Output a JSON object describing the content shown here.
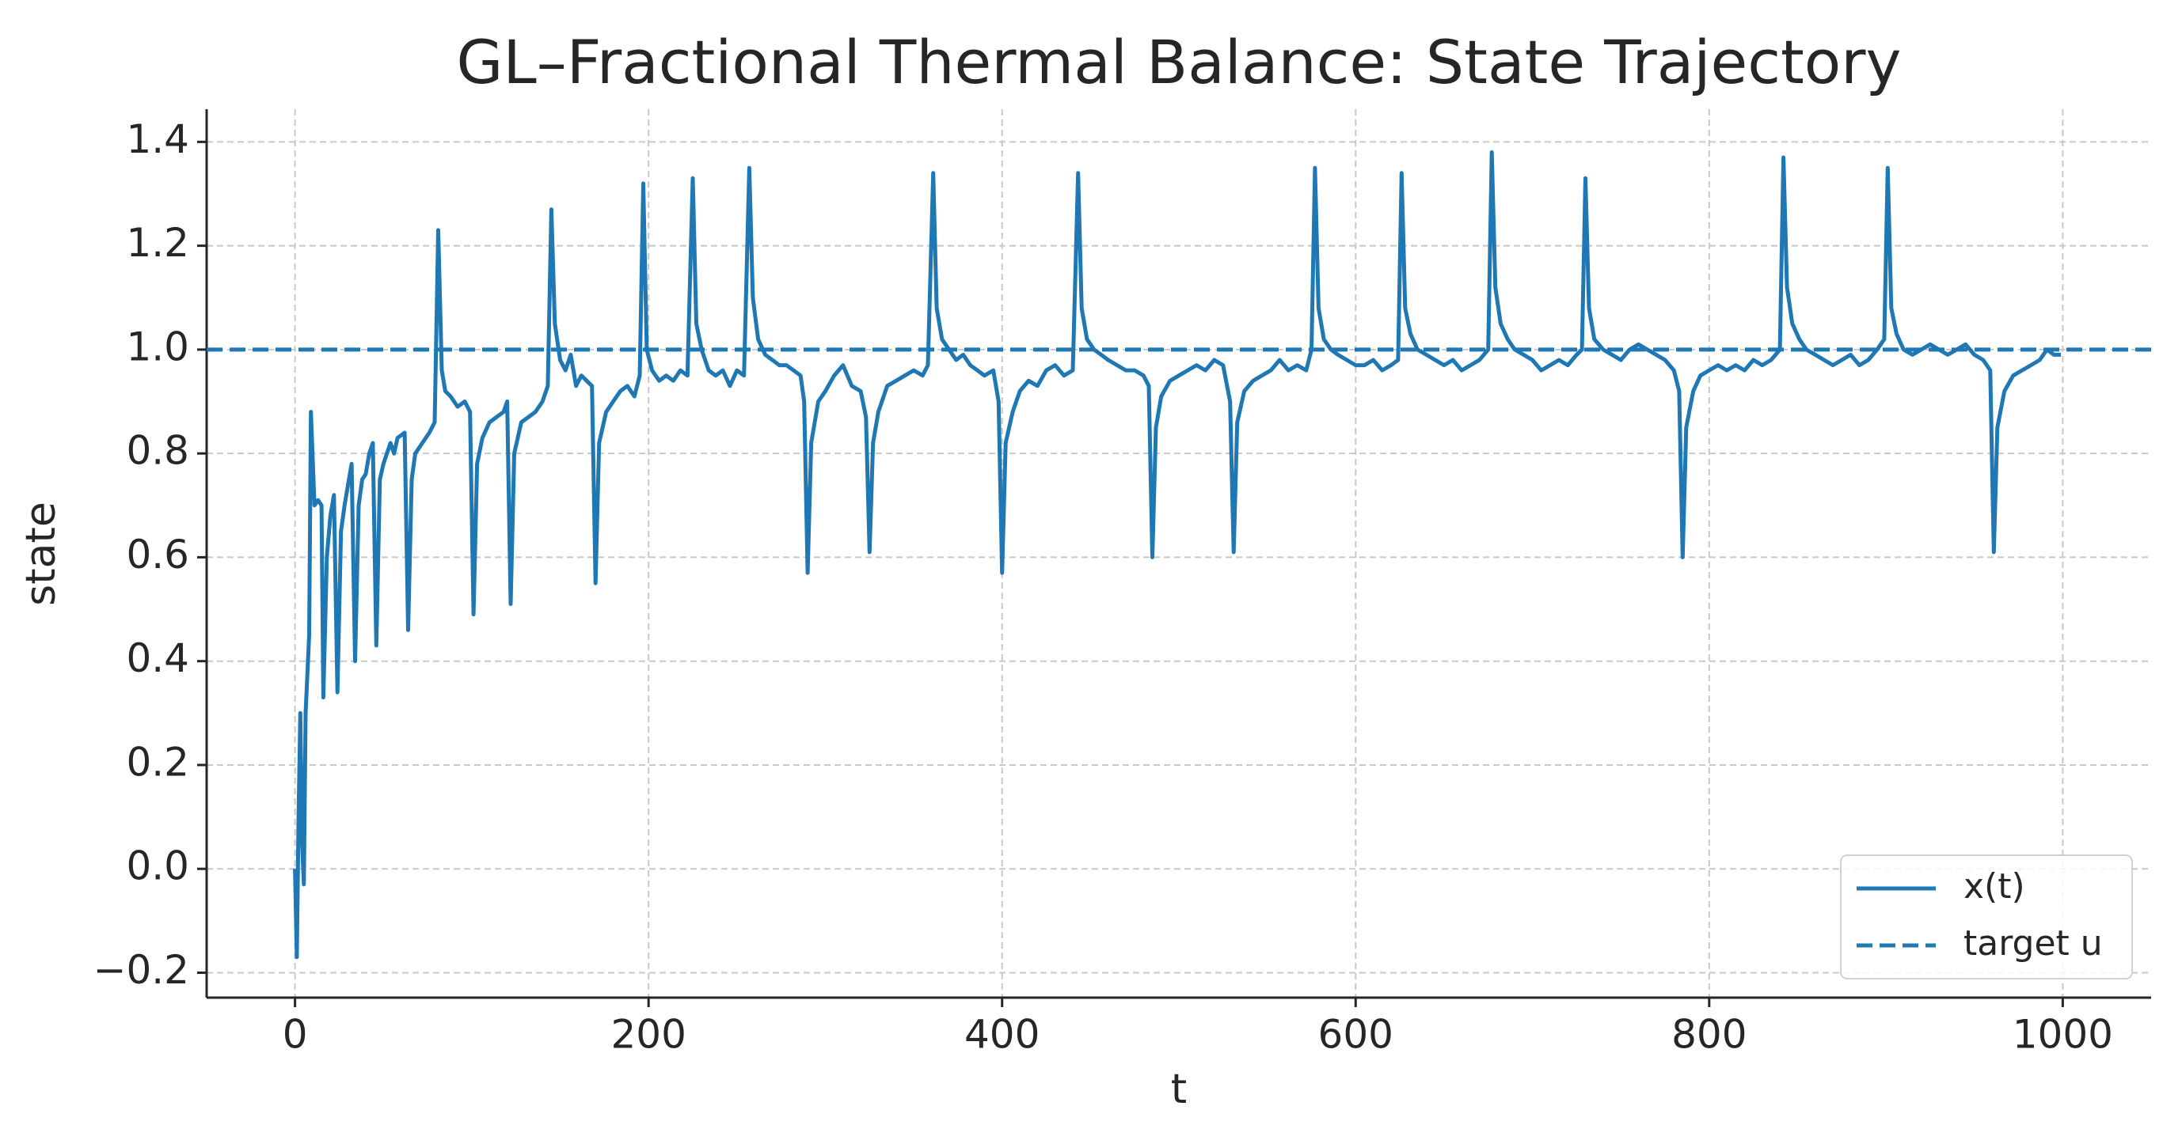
{
  "chart_data": {
    "type": "line",
    "title": "GL–Fractional Thermal Balance: State Trajectory",
    "x_label": "t",
    "y_label": "state",
    "xlim": [
      -50,
      1050
    ],
    "ylim": [
      -0.248,
      1.463
    ],
    "xticks": [
      0,
      200,
      400,
      600,
      800,
      1000
    ],
    "yticks": [
      {
        "value": -0.2,
        "label": "−0.2"
      },
      {
        "value": 0.0,
        "label": "0.0"
      },
      0.2,
      0.4,
      0.6,
      0.8,
      {
        "value": 1.0,
        "label": "1.0"
      },
      1.2,
      1.4
    ],
    "grid": true,
    "legend": "lower right",
    "series": [
      {
        "name": "x(t)",
        "color": "#1f77b4",
        "x": [
          0,
          1,
          2,
          3,
          4,
          5,
          6,
          8,
          9,
          11,
          13,
          15,
          16,
          18,
          20,
          22,
          24,
          26,
          28,
          30,
          32,
          34,
          36,
          38,
          40,
          42,
          44,
          46,
          48,
          50,
          52,
          54,
          56,
          58,
          62,
          64,
          66,
          68,
          72,
          76,
          79,
          81,
          83,
          85,
          88,
          92,
          96,
          99,
          101,
          103,
          106,
          110,
          114,
          118,
          120,
          122,
          124,
          128,
          132,
          136,
          140,
          143,
          145,
          147,
          150,
          153,
          156,
          159,
          162,
          165,
          168,
          170,
          172,
          176,
          180,
          184,
          188,
          192,
          195,
          197,
          199,
          202,
          206,
          210,
          214,
          218,
          222,
          225,
          227,
          230,
          234,
          238,
          242,
          246,
          250,
          254,
          257,
          259,
          262,
          266,
          270,
          274,
          278,
          282,
          286,
          288,
          290,
          292,
          296,
          300,
          305,
          310,
          315,
          320,
          323,
          325,
          327,
          330,
          335,
          340,
          345,
          350,
          355,
          358,
          361,
          363,
          366,
          370,
          374,
          378,
          382,
          386,
          390,
          395,
          398,
          400,
          402,
          406,
          410,
          415,
          420,
          425,
          430,
          435,
          440,
          443,
          445,
          448,
          452,
          456,
          460,
          465,
          470,
          475,
          480,
          483,
          485,
          487,
          490,
          495,
          500,
          505,
          510,
          515,
          520,
          525,
          529,
          531,
          533,
          537,
          542,
          547,
          552,
          557,
          562,
          567,
          572,
          575,
          577,
          579,
          582,
          586,
          590,
          595,
          600,
          605,
          610,
          615,
          620,
          624,
          626,
          628,
          631,
          635,
          640,
          645,
          650,
          655,
          660,
          665,
          670,
          675,
          677,
          679,
          682,
          686,
          690,
          695,
          700,
          705,
          710,
          715,
          720,
          725,
          728,
          730,
          732,
          735,
          740,
          745,
          750,
          755,
          760,
          765,
          770,
          775,
          780,
          783,
          785,
          787,
          791,
          795,
          800,
          805,
          810,
          815,
          820,
          825,
          830,
          835,
          840,
          842,
          844,
          847,
          851,
          855,
          860,
          865,
          870,
          875,
          880,
          885,
          890,
          895,
          899,
          901,
          903,
          906,
          910,
          915,
          920,
          925,
          930,
          935,
          940,
          945,
          950,
          955,
          959,
          961,
          963,
          967,
          972,
          977,
          982,
          987,
          991,
          995,
          999
        ],
        "values": [
          0,
          -0.17,
          0.1,
          0.3,
          0.05,
          -0.03,
          0.3,
          0.45,
          0.88,
          0.7,
          0.71,
          0.7,
          0.33,
          0.6,
          0.68,
          0.72,
          0.34,
          0.65,
          0.7,
          0.74,
          0.78,
          0.4,
          0.7,
          0.75,
          0.76,
          0.8,
          0.82,
          0.43,
          0.75,
          0.78,
          0.8,
          0.82,
          0.8,
          0.83,
          0.84,
          0.46,
          0.75,
          0.8,
          0.82,
          0.84,
          0.86,
          1.23,
          0.96,
          0.92,
          0.91,
          0.89,
          0.9,
          0.88,
          0.49,
          0.78,
          0.83,
          0.86,
          0.87,
          0.88,
          0.9,
          0.51,
          0.8,
          0.86,
          0.87,
          0.88,
          0.9,
          0.93,
          1.27,
          1.05,
          0.98,
          0.96,
          0.99,
          0.93,
          0.95,
          0.94,
          0.93,
          0.55,
          0.82,
          0.88,
          0.9,
          0.92,
          0.93,
          0.91,
          0.95,
          1.32,
          1.0,
          0.96,
          0.94,
          0.95,
          0.94,
          0.96,
          0.95,
          1.33,
          1.05,
          1.0,
          0.96,
          0.95,
          0.96,
          0.93,
          0.96,
          0.95,
          1.35,
          1.1,
          1.02,
          0.99,
          0.98,
          0.97,
          0.97,
          0.96,
          0.95,
          0.9,
          0.57,
          0.82,
          0.9,
          0.92,
          0.95,
          0.97,
          0.93,
          0.92,
          0.87,
          0.61,
          0.82,
          0.88,
          0.93,
          0.94,
          0.95,
          0.96,
          0.95,
          0.97,
          1.34,
          1.08,
          1.02,
          1.0,
          0.98,
          0.99,
          0.97,
          0.96,
          0.95,
          0.96,
          0.9,
          0.57,
          0.82,
          0.88,
          0.92,
          0.94,
          0.93,
          0.96,
          0.97,
          0.95,
          0.96,
          1.34,
          1.08,
          1.02,
          1.0,
          0.99,
          0.98,
          0.97,
          0.96,
          0.96,
          0.95,
          0.93,
          0.6,
          0.85,
          0.91,
          0.94,
          0.95,
          0.96,
          0.97,
          0.96,
          0.98,
          0.97,
          0.9,
          0.61,
          0.86,
          0.92,
          0.94,
          0.95,
          0.96,
          0.98,
          0.96,
          0.97,
          0.96,
          1.0,
          1.35,
          1.08,
          1.02,
          1.0,
          0.99,
          0.98,
          0.97,
          0.97,
          0.98,
          0.96,
          0.97,
          0.98,
          1.34,
          1.08,
          1.03,
          1.0,
          0.99,
          0.98,
          0.97,
          0.98,
          0.96,
          0.97,
          0.98,
          1.0,
          1.38,
          1.12,
          1.05,
          1.02,
          1.0,
          0.99,
          0.98,
          0.96,
          0.97,
          0.98,
          0.97,
          0.99,
          1.0,
          1.33,
          1.08,
          1.02,
          1.0,
          0.99,
          0.98,
          1.0,
          1.01,
          1.0,
          0.99,
          0.98,
          0.96,
          0.92,
          0.6,
          0.85,
          0.92,
          0.95,
          0.96,
          0.97,
          0.96,
          0.97,
          0.96,
          0.98,
          0.97,
          0.98,
          1.0,
          1.37,
          1.12,
          1.05,
          1.02,
          1.0,
          0.99,
          0.98,
          0.97,
          0.98,
          0.99,
          0.97,
          0.98,
          1.0,
          1.02,
          1.35,
          1.08,
          1.03,
          1.0,
          0.99,
          1.0,
          1.01,
          1.0,
          0.99,
          1.0,
          1.01,
          0.99,
          0.98,
          0.96,
          0.61,
          0.85,
          0.92,
          0.95,
          0.96,
          0.97,
          0.98,
          1.0,
          0.99,
          0.99
        ]
      },
      {
        "name": "target u",
        "color": "#1f77b4",
        "style": "dashed",
        "value": 1.0
      }
    ]
  }
}
